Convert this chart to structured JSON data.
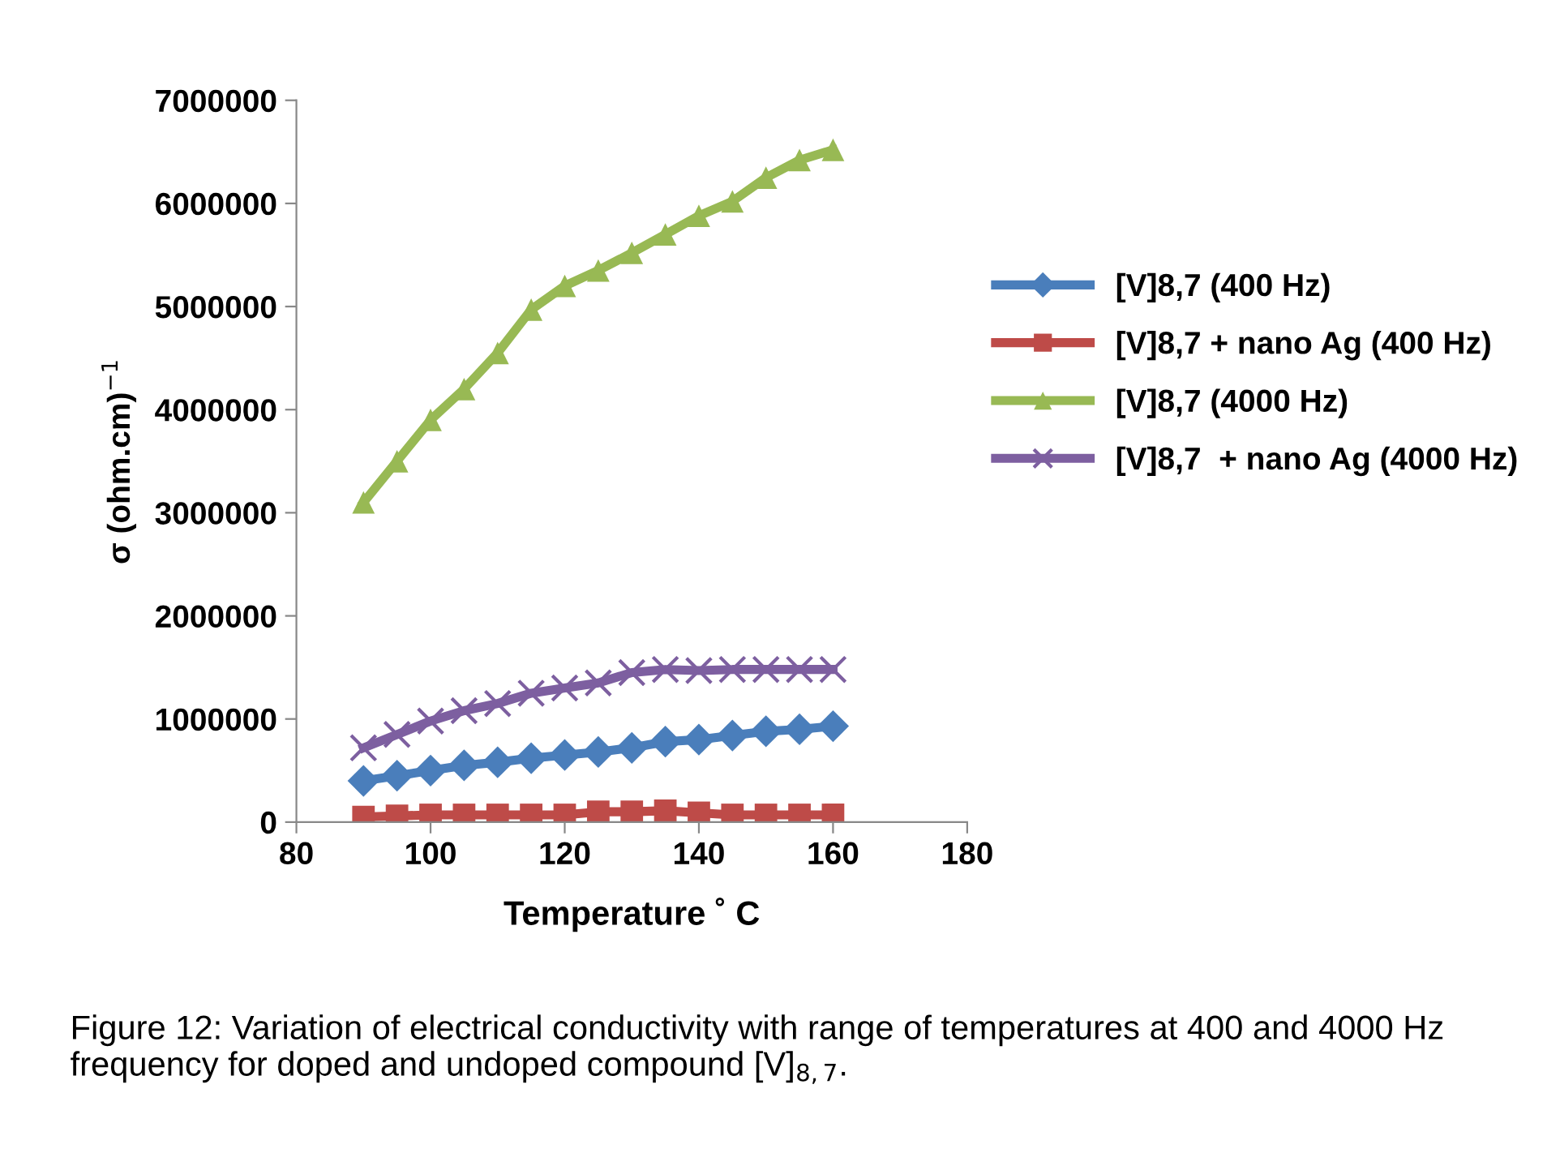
{
  "chart_data": {
    "type": "line",
    "xlabel": "Temperature ˚ C",
    "ylabel": "σ (ohm.cm)$^{−1}$",
    "x": [
      90,
      95,
      100,
      105,
      110,
      115,
      120,
      125,
      130,
      135,
      140,
      145,
      150,
      155,
      160
    ],
    "series": [
      {
        "name": "[V]8,7 (400 Hz)",
        "color": "#4a7ebb",
        "marker": "diamond",
        "values": [
          400000,
          450000,
          500000,
          550000,
          580000,
          620000,
          650000,
          680000,
          720000,
          780000,
          800000,
          840000,
          880000,
          900000,
          930000
        ]
      },
      {
        "name": "[V]8,7 + nano Ag (400 Hz)",
        "color": "#be4b48",
        "marker": "square",
        "values": [
          50000,
          60000,
          70000,
          70000,
          70000,
          70000,
          70000,
          100000,
          100000,
          110000,
          90000,
          70000,
          70000,
          70000,
          70000
        ]
      },
      {
        "name": "[V]8,7 (4000 Hz)",
        "color": "#98b954",
        "marker": "triangle",
        "values": [
          3100000,
          3500000,
          3900000,
          4200000,
          4550000,
          4970000,
          5200000,
          5350000,
          5520000,
          5700000,
          5880000,
          6020000,
          6250000,
          6420000,
          6520000
        ]
      },
      {
        "name": "[V]8,7  + nano Ag (4000 Hz)",
        "color": "#7d5fa0",
        "marker": "cross",
        "values": [
          720000,
          850000,
          980000,
          1080000,
          1150000,
          1250000,
          1300000,
          1350000,
          1450000,
          1480000,
          1470000,
          1480000,
          1480000,
          1480000,
          1480000
        ]
      }
    ],
    "xlim": [
      80,
      180
    ],
    "xticks": [
      80,
      100,
      120,
      140,
      160,
      180
    ],
    "ylim": [
      0,
      7000000
    ],
    "yticks": [
      0,
      1000000,
      2000000,
      3000000,
      4000000,
      5000000,
      6000000,
      7000000
    ],
    "grid": false,
    "legend": "right",
    "line_style": "solid",
    "annotations": [
      "Figure 12: Variation of electrical conductivity with range of temperatures at 400 and 4000 Hz frequency for doped and undoped compound [V]$_{8,7}$."
    ]
  }
}
